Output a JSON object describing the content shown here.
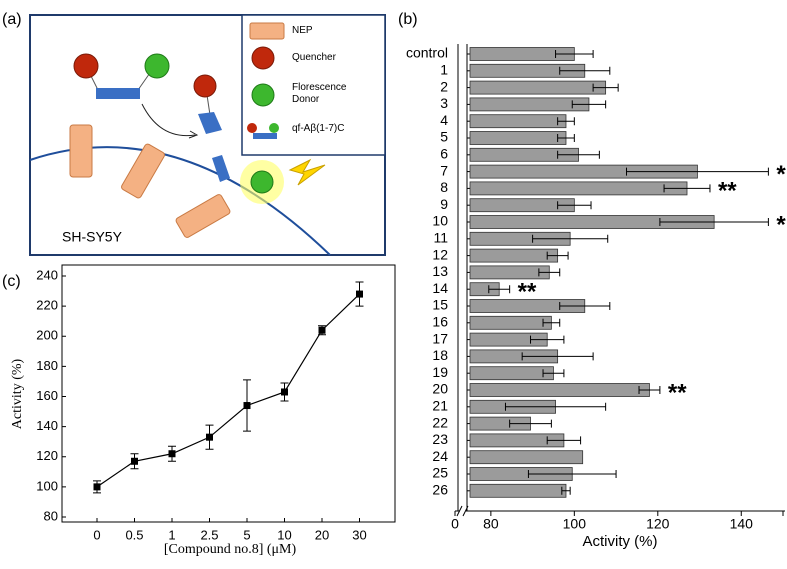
{
  "panels": [
    "(a)",
    "(b)",
    "(c)"
  ],
  "diagram": {
    "legend": [
      "NEP",
      "Quencher",
      "Florescence Donor",
      "qf-Aβ(1-7)C"
    ],
    "cell_label": "SH-SY5Y"
  },
  "chart_data": [
    {
      "type": "bar",
      "orientation": "horizontal",
      "categories": [
        "control",
        "1",
        "2",
        "3",
        "4",
        "5",
        "6",
        "7",
        "8",
        "9",
        "10",
        "11",
        "12",
        "13",
        "14",
        "15",
        "16",
        "17",
        "18",
        "19",
        "20",
        "21",
        "22",
        "23",
        "24",
        "25",
        "26"
      ],
      "values": [
        100,
        102.5,
        107.5,
        103.5,
        98,
        98,
        101,
        129.5,
        127,
        100,
        133.5,
        99,
        96,
        94,
        82,
        102.5,
        94.5,
        93.5,
        96,
        95,
        118,
        95.5,
        89.5,
        97.5,
        102,
        99.5,
        98
      ],
      "errors": [
        4.5,
        6,
        3,
        4,
        2,
        2,
        5,
        17,
        5.5,
        4,
        13,
        9,
        2.5,
        2.5,
        2.5,
        6,
        2,
        4,
        8.5,
        2.5,
        2.5,
        12,
        5,
        4,
        null,
        10.5,
        1
      ],
      "color": "#9b9b9b",
      "xlabel": "Activity (%)",
      "xlim": [
        0,
        150
      ],
      "axis_break": [
        5,
        75
      ],
      "xticks": [
        0,
        80,
        100,
        120,
        140
      ],
      "annotations": [
        {
          "category": "7",
          "text": "*"
        },
        {
          "category": "8",
          "text": "**"
        },
        {
          "category": "10",
          "text": "*"
        },
        {
          "category": "14",
          "text": "**"
        },
        {
          "category": "20",
          "text": "**"
        }
      ]
    },
    {
      "type": "line",
      "categories": [
        "0",
        "0.5",
        "1",
        "2.5",
        "5",
        "10",
        "20",
        "30"
      ],
      "values": [
        100,
        117,
        122,
        133,
        154,
        163,
        204,
        228
      ],
      "errors": [
        4,
        5,
        5,
        8,
        17,
        6,
        3,
        8
      ],
      "color": "#000000",
      "xlabel": "[Compound no.8] (μM)",
      "ylabel": "Activity (%)",
      "ylim": [
        80,
        240
      ],
      "yticks": [
        80,
        100,
        120,
        140,
        160,
        180,
        200,
        220,
        240
      ]
    }
  ]
}
